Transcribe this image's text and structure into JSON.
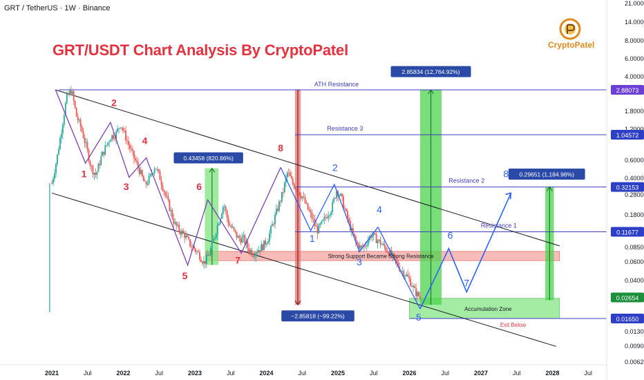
{
  "header": {
    "symbol_line": "GRT / TetherUS · 1W · Binance"
  },
  "title": "GRT/USDT Chart Analysis By CryptoPatel",
  "brand": {
    "name": "CryptoPatel",
    "color": "#e08a1e"
  },
  "colors": {
    "up": "#26a69a",
    "down": "#ef5350",
    "title_red": "#e4323e",
    "wave_red": "#e4323e",
    "wave_blue": "#2962ff",
    "level_line": "#3f3cc0",
    "zone_green": "#7ee37e",
    "zone_red": "#f4a6a0",
    "ath_label_bg": "#6b3fd6",
    "support_label_bg": "#2d3ec7",
    "current_price_bg": "#1b8f3a",
    "range_label_bg": "#2b4aa8"
  },
  "chart_data": {
    "type": "candlestick",
    "x_axis": {
      "ticks": [
        "2021",
        "Jul",
        "2022",
        "Jul",
        "2023",
        "Jul",
        "2024",
        "Jul",
        "2025",
        "Jul",
        "2026",
        "Jul",
        "2027",
        "Jul",
        "2028",
        "Jul"
      ],
      "bold_ticks": [
        "2021",
        "2022",
        "2023",
        "2024",
        "2025",
        "2026",
        "2027",
        "2028"
      ]
    },
    "y_axis": {
      "scale": "log",
      "ticks": [
        "21.00000",
        "14.00000",
        "8.00000",
        "6.00000",
        "4.00000",
        "2.88073",
        "1.80000",
        "1.20000",
        "1.04572",
        "0.60000",
        "0.40000",
        "0.32153",
        "0.28000",
        "0.18000",
        "0.11677",
        "0.08500",
        "0.06000",
        "0.04000",
        "0.02654",
        "0.01650",
        "0.01300",
        "0.00900",
        "0.00620"
      ]
    },
    "price_labels": [
      {
        "value": 2.88073,
        "text": "2.88073",
        "style": "ath"
      },
      {
        "value": 1.04572,
        "text": "1.04572",
        "style": "level"
      },
      {
        "value": 0.32153,
        "text": "0.32153",
        "style": "level"
      },
      {
        "value": 0.11677,
        "text": "0.11677",
        "style": "level"
      },
      {
        "value": 0.02654,
        "text": "0.02654",
        "style": "current"
      },
      {
        "value": 0.0165,
        "text": "0.01650",
        "style": "level"
      }
    ],
    "levels": [
      {
        "name": "ATH Resistance",
        "value": 2.88073
      },
      {
        "name": "Resistance 3",
        "value": 1.04572
      },
      {
        "name": "Resistance 2",
        "value": 0.32153
      },
      {
        "name": "Resistance 1",
        "value": 0.11677
      },
      {
        "name": "",
        "value": 0.0165
      }
    ],
    "zones": [
      {
        "label": "Strong Support Became Strong Resistance",
        "low": 0.061,
        "high": 0.075,
        "color": "red"
      },
      {
        "label": "Accumulation Zone",
        "low": 0.0165,
        "high": 0.026,
        "color": "green"
      }
    ],
    "measurements": [
      {
        "text": "0.43458 (820.86%)",
        "from": 0.0553,
        "to": 0.49,
        "direction": "up"
      },
      {
        "text": "−2.85818 (−99.22%)",
        "from": 2.88073,
        "to": 0.0225,
        "direction": "down"
      },
      {
        "text": "2.85834 (12,764.92%)",
        "from": 0.0225,
        "to": 2.88073,
        "direction": "up"
      },
      {
        "text": "0.29651 (1,184.98%)",
        "from": 0.025,
        "to": 0.32153,
        "direction": "up"
      }
    ],
    "annotations": [
      "ATH Resistance",
      "Resistance 3",
      "Resistance 2",
      "Resistance 1",
      "Strong Support Became Strong Resistance",
      "Accumulation Zone",
      "Exit Below"
    ],
    "wave_labels_red": [
      "1",
      "2",
      "3",
      "4",
      "5",
      "6",
      "7",
      "8"
    ],
    "wave_labels_blue": [
      "1",
      "2",
      "3",
      "4",
      "5",
      "6",
      "7",
      "8"
    ],
    "price_path_weekly_close": [
      0.35,
      0.6,
      1.2,
      2.4,
      2.9,
      1.6,
      1.2,
      0.8,
      0.5,
      0.42,
      0.62,
      0.8,
      1.0,
      1.05,
      1.35,
      1.0,
      0.75,
      0.58,
      0.45,
      0.33,
      0.4,
      0.52,
      0.4,
      0.28,
      0.2,
      0.14,
      0.12,
      0.11,
      0.09,
      0.08,
      0.07,
      0.058,
      0.07,
      0.1,
      0.15,
      0.22,
      0.14,
      0.12,
      0.1,
      0.1,
      0.08,
      0.072,
      0.078,
      0.085,
      0.1,
      0.14,
      0.2,
      0.28,
      0.45,
      0.35,
      0.3,
      0.26,
      0.2,
      0.16,
      0.12,
      0.14,
      0.17,
      0.2,
      0.3,
      0.25,
      0.17,
      0.12,
      0.09,
      0.08,
      0.09,
      0.11,
      0.1,
      0.09,
      0.08,
      0.07,
      0.06,
      0.05,
      0.045,
      0.038,
      0.03,
      0.0265
    ]
  }
}
